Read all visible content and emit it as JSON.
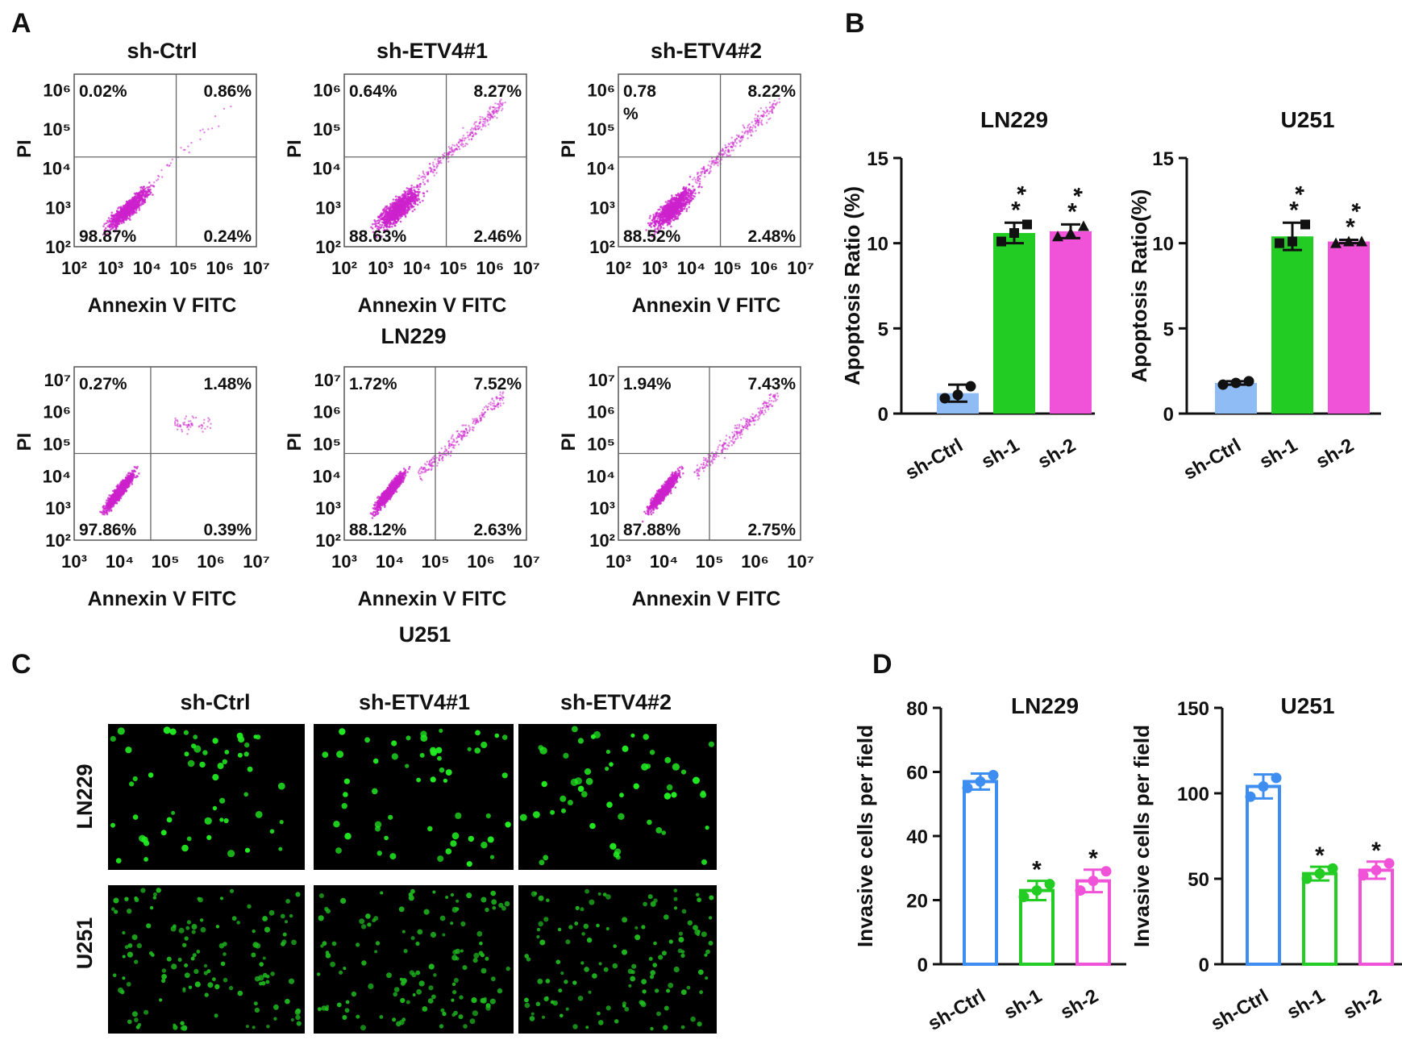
{
  "colors": {
    "ctrl": "#8fbcf5",
    "ctrl_line": "#3d8ef0",
    "sh1": "#22cc22",
    "sh2": "#f052d8",
    "dots": "#cc22cc",
    "cell": "#22ee22"
  },
  "panels": {
    "A": "A",
    "B": "B",
    "C": "C",
    "D": "D"
  },
  "chart_data": [
    {
      "type": "scatter",
      "panel": "A",
      "group_labels": [
        {
          "label": "LN229"
        },
        {
          "label": "U251"
        }
      ],
      "xlabel": "Annexin V FITC",
      "ylabel": "PI",
      "plots": [
        {
          "title": "sh-Ctrl",
          "cell": "LN229",
          "q": [
            "0.02%",
            "0.86%",
            "98.87%",
            "0.24%"
          ],
          "xticks": [
            "10²",
            "10³",
            "10⁴",
            "10⁵",
            "10⁶",
            "10⁷"
          ],
          "yticks": [
            "10²",
            "10³",
            "10⁴",
            "10⁵",
            "10⁶"
          ]
        },
        {
          "title": "sh-ETV4#1",
          "cell": "LN229",
          "q": [
            "0.64%",
            "8.27%",
            "88.63%",
            "2.46%"
          ],
          "xticks": [
            "10²",
            "10³",
            "10⁴",
            "10⁵",
            "10⁶",
            "10⁷"
          ],
          "yticks": [
            "10²",
            "10³",
            "10⁴",
            "10⁵",
            "10⁶"
          ]
        },
        {
          "title": "sh-ETV4#2",
          "cell": "LN229",
          "q": [
            "0.78\n%",
            "8.22%",
            "88.52%",
            "2.48%"
          ],
          "xticks": [
            "10²",
            "10³",
            "10⁴",
            "10⁵",
            "10⁶",
            "10⁷"
          ],
          "yticks": [
            "10²",
            "10³",
            "10⁴",
            "10⁵",
            "10⁶"
          ]
        },
        {
          "title": "",
          "cell": "U251",
          "q": [
            "0.27%",
            "1.48%",
            "97.86%",
            "0.39%"
          ],
          "xticks": [
            "10³",
            "10⁴",
            "10⁵",
            "10⁶",
            "10⁷"
          ],
          "yticks": [
            "10²",
            "10³",
            "10⁴",
            "10⁵",
            "10⁶",
            "10⁷"
          ]
        },
        {
          "title": "",
          "cell": "U251",
          "q": [
            "1.72%",
            "7.52%",
            "88.12%",
            "2.63%"
          ],
          "xticks": [
            "10³",
            "10⁴",
            "10⁵",
            "10⁶",
            "10⁷"
          ],
          "yticks": [
            "10²",
            "10³",
            "10⁴",
            "10⁵",
            "10⁶",
            "10⁷"
          ]
        },
        {
          "title": "",
          "cell": "U251",
          "q": [
            "1.94%",
            "7.43%",
            "87.88%",
            "2.75%"
          ],
          "xticks": [
            "10³",
            "10⁴",
            "10⁵",
            "10⁶",
            "10⁷"
          ],
          "yticks": [
            "10²",
            "10³",
            "10⁴",
            "10⁵",
            "10⁶",
            "10⁷"
          ]
        }
      ]
    },
    {
      "type": "bar",
      "panel": "B",
      "title": "LN229",
      "ylabel": "Apoptosis Ratio (%)",
      "ylim": [
        0,
        15
      ],
      "yticks": [
        0,
        5,
        10,
        15
      ],
      "categories": [
        "sh-Ctrl",
        "sh-1",
        "sh-2"
      ],
      "values": [
        1.2,
        10.6,
        10.7
      ],
      "errors": [
        0.5,
        0.6,
        0.4
      ],
      "points": [
        [
          0.9,
          1.1,
          1.6
        ],
        [
          10.1,
          10.6,
          11.1
        ],
        [
          10.4,
          10.6,
          11.0
        ]
      ],
      "significance": [
        "",
        "**",
        "**"
      ],
      "fill": "solid"
    },
    {
      "type": "bar",
      "panel": "B",
      "title": "U251",
      "ylabel": "Apoptosis Ratio(%)",
      "ylim": [
        0,
        15
      ],
      "yticks": [
        0,
        5,
        10,
        15
      ],
      "categories": [
        "sh-Ctrl",
        "sh-1",
        "sh-2"
      ],
      "values": [
        1.8,
        10.4,
        10.1
      ],
      "errors": [
        0.1,
        0.8,
        0.1
      ],
      "points": [
        [
          1.7,
          1.8,
          1.9
        ],
        [
          10.0,
          10.1,
          11.1
        ],
        [
          10.0,
          10.1,
          10.1
        ]
      ],
      "significance": [
        "",
        "**",
        "**"
      ],
      "fill": "solid"
    },
    {
      "type": "bar",
      "panel": "D",
      "title": "LN229",
      "ylabel": "Invasive cells per field",
      "ylim": [
        0,
        80
      ],
      "yticks": [
        0,
        20,
        40,
        60,
        80
      ],
      "categories": [
        "sh-Ctrl",
        "sh-1",
        "sh-2"
      ],
      "values": [
        57,
        23,
        26
      ],
      "errors": [
        2.5,
        3,
        3.5
      ],
      "points": [
        [
          55,
          57,
          59
        ],
        [
          21,
          23,
          25
        ],
        [
          23,
          26,
          29
        ]
      ],
      "significance": [
        "",
        "*",
        "*"
      ],
      "fill": "open"
    },
    {
      "type": "bar",
      "panel": "D",
      "title": "U251",
      "ylabel": "Invasive cells per field",
      "ylim": [
        0,
        150
      ],
      "yticks": [
        0,
        50,
        100,
        150
      ],
      "categories": [
        "sh-Ctrl",
        "sh-1",
        "sh-2"
      ],
      "values": [
        104,
        53,
        55
      ],
      "errors": [
        7,
        4,
        5
      ],
      "points": [
        [
          98,
          104,
          109
        ],
        [
          50,
          53,
          56
        ],
        [
          52,
          55,
          59
        ]
      ],
      "significance": [
        "",
        "*",
        "*"
      ],
      "fill": "open"
    }
  ],
  "panel_c": {
    "column_labels": [
      "sh-Ctrl",
      "sh-ETV4#1",
      "sh-ETV4#2"
    ],
    "row_labels": [
      "LN229",
      "U251"
    ]
  }
}
